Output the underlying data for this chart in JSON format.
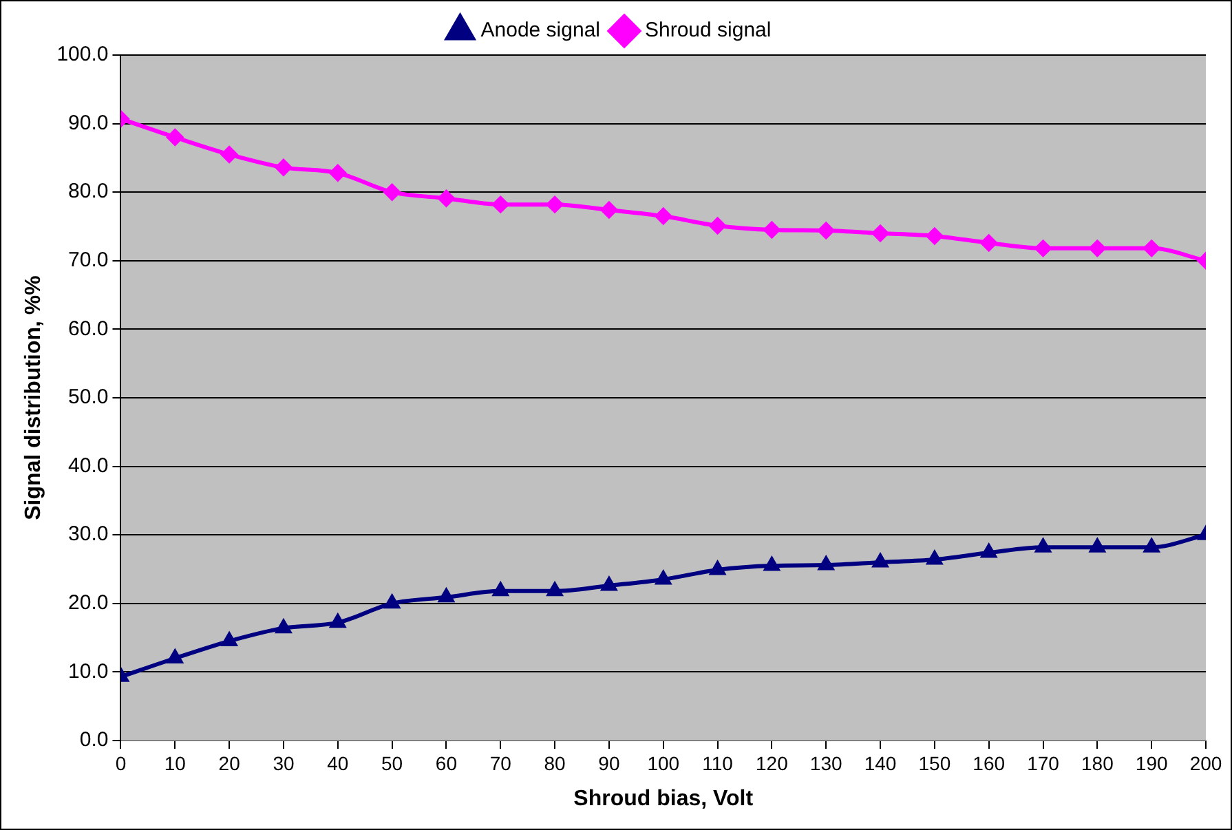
{
  "chart_data": {
    "type": "line",
    "xlabel": "Shroud bias, Volt",
    "ylabel": "Signal distribution, %%",
    "x": [
      0,
      10,
      20,
      30,
      40,
      50,
      60,
      70,
      80,
      90,
      100,
      110,
      120,
      130,
      140,
      150,
      160,
      170,
      180,
      190,
      200
    ],
    "series": [
      {
        "name": "Anode signal",
        "color": "#000080",
        "marker": "triangle",
        "values": [
          9.3,
          12,
          14.5,
          16.4,
          17.2,
          20,
          20.9,
          21.8,
          21.8,
          22.6,
          23.5,
          24.9,
          25.5,
          25.6,
          26,
          26.4,
          27.4,
          28.2,
          28.2,
          28.2,
          30
        ]
      },
      {
        "name": "Shroud signal",
        "color": "#ff00ff",
        "marker": "diamond",
        "values": [
          90.7,
          88,
          85.5,
          83.6,
          82.8,
          80,
          79.1,
          78.2,
          78.2,
          77.4,
          76.5,
          75.1,
          74.5,
          74.4,
          74,
          73.6,
          72.6,
          71.8,
          71.8,
          71.8,
          70
        ]
      }
    ],
    "xlim": [
      0,
      200
    ],
    "xticks": [
      0,
      10,
      20,
      30,
      40,
      50,
      60,
      70,
      80,
      90,
      100,
      110,
      120,
      130,
      140,
      150,
      160,
      170,
      180,
      190,
      200
    ],
    "ylim": [
      0,
      100
    ],
    "yticks": [
      {
        "value": 0,
        "label": "0.0"
      },
      {
        "value": 10,
        "label": "10.0"
      },
      {
        "value": 20,
        "label": "20.0"
      },
      {
        "value": 30,
        "label": "30.0"
      },
      {
        "value": 40,
        "label": "40.0"
      },
      {
        "value": 50,
        "label": "50.0"
      },
      {
        "value": 60,
        "label": "60.0"
      },
      {
        "value": 70,
        "label": "70.0"
      },
      {
        "value": 80,
        "label": "80.0"
      },
      {
        "value": 90,
        "label": "90.0"
      },
      {
        "value": 100,
        "label": "100.0"
      }
    ],
    "grid": "y",
    "legend": "top",
    "line_style": "solid"
  }
}
